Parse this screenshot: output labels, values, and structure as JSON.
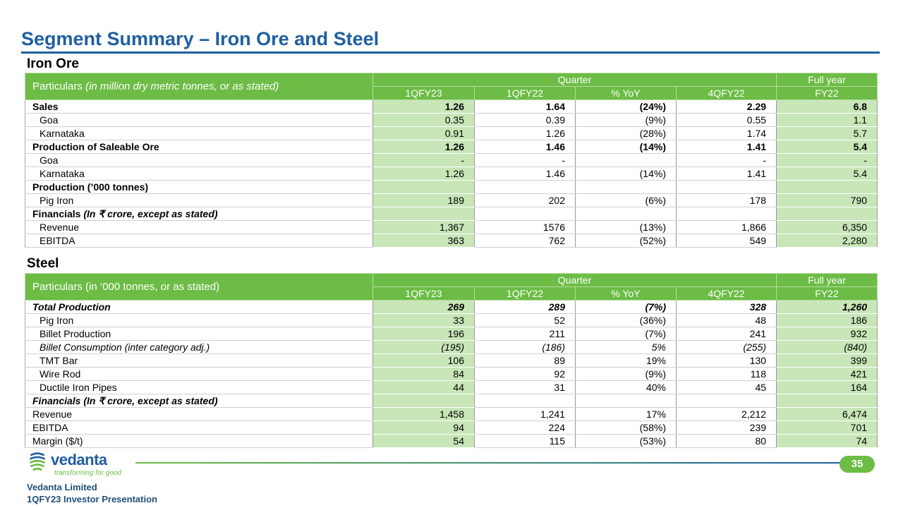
{
  "title": "Segment Summary – Iron Ore and Steel",
  "iron_ore": {
    "section": "Iron Ore",
    "particulars": "Particulars ",
    "particulars_italic": "(in million dry metric tonnes, or  as stated)",
    "quarter": "Quarter",
    "full_year": "Full year",
    "columns": [
      "1QFY23",
      "1QFY22",
      "% YoY",
      "4QFY22",
      "FY22"
    ],
    "rows": [
      {
        "label": "Sales",
        "style": "b",
        "values": [
          "1.26",
          "1.64",
          "(24%)",
          "2.29",
          "6.8"
        ]
      },
      {
        "label": "Goa",
        "style": "sub",
        "values": [
          "0.35",
          "0.39",
          "(9%)",
          "0.55",
          "1.1"
        ]
      },
      {
        "label": "Karnataka",
        "style": "sub",
        "values": [
          "0.91",
          "1.26",
          "(28%)",
          "1.74",
          "5.7"
        ]
      },
      {
        "label": "Production of Saleable Ore",
        "style": "b",
        "values": [
          "1.26",
          "1.46",
          "(14%)",
          "1.41",
          "5.4"
        ]
      },
      {
        "label": "Goa",
        "style": "sub",
        "values": [
          "-",
          "-",
          "",
          "-",
          "-"
        ]
      },
      {
        "label": "Karnataka",
        "style": "sub",
        "values": [
          "1.26",
          "1.46",
          "(14%)",
          "1.41",
          "5.4"
        ]
      },
      {
        "label": "Production (’000 tonnes)",
        "style": "b",
        "values": [
          "",
          "",
          "",
          "",
          ""
        ]
      },
      {
        "label": "Pig Iron",
        "style": "sub",
        "values": [
          "189",
          "202",
          "(6%)",
          "178",
          "790"
        ]
      },
      {
        "label": "Financials",
        "label_italic": " (In ₹ crore, except as stated)",
        "style": "b",
        "values": [
          "",
          "",
          "",
          "",
          ""
        ]
      },
      {
        "label": "Revenue",
        "style": "sub",
        "values": [
          "1,367",
          "1576",
          "(13%)",
          "1,866",
          "6,350"
        ]
      },
      {
        "label": "EBITDA",
        "style": "sub",
        "values": [
          "363",
          "762",
          "(52%)",
          "549",
          "2,280"
        ]
      }
    ]
  },
  "steel": {
    "section": "Steel",
    "particulars": "Particulars (in ‘000 tonnes, or as stated)",
    "particulars_italic": "",
    "quarter": "Quarter",
    "full_year": "Full year",
    "columns": [
      "1QFY23",
      "1QFY22",
      "% YoY",
      "4QFY22",
      "FY22"
    ],
    "rows": [
      {
        "label": "Total Production",
        "style": "b i",
        "values": [
          "269",
          "289",
          "(7%)",
          "328",
          "1,260"
        ]
      },
      {
        "label": "Pig Iron",
        "style": "sub",
        "values": [
          "33",
          "52",
          "(36%)",
          "48",
          "186"
        ]
      },
      {
        "label": "Billet Production",
        "style": "sub",
        "values": [
          "196",
          "211",
          "(7%)",
          "241",
          "932"
        ]
      },
      {
        "label": "Billet Consumption (inter category adj.)",
        "style": "sub i",
        "values": [
          "(195)",
          "(186)",
          "5%",
          "(255)",
          "(840)"
        ]
      },
      {
        "label": "TMT Bar",
        "style": "sub",
        "values": [
          "106",
          "89",
          "19%",
          "130",
          "399"
        ]
      },
      {
        "label": "Wire Rod",
        "style": "sub",
        "values": [
          "84",
          "92",
          "(9%)",
          "118",
          "421"
        ]
      },
      {
        "label": "Ductile Iron Pipes",
        "style": "sub",
        "values": [
          "44",
          "31",
          "40%",
          "45",
          "164"
        ]
      },
      {
        "label": "Financials (In ₹ crore, except as stated)",
        "style": "b i",
        "values": [
          "",
          "",
          "",
          "",
          ""
        ]
      },
      {
        "label": "Revenue",
        "style": "",
        "values": [
          "1,458",
          "1,241",
          "17%",
          "2,212",
          "6,474"
        ]
      },
      {
        "label": "EBITDA",
        "style": "",
        "values": [
          "94",
          "224",
          "(58%)",
          "239",
          "701"
        ]
      },
      {
        "label": "Margin ($/t)",
        "style": "",
        "values": [
          "54",
          "115",
          "(53%)",
          "80",
          "74"
        ]
      }
    ]
  },
  "footer": {
    "logo": "vedanta",
    "tagline": "transforming for good",
    "page": "35",
    "company": "Vedanta Limited",
    "presentation": "1QFY23 Investor Presentation"
  }
}
